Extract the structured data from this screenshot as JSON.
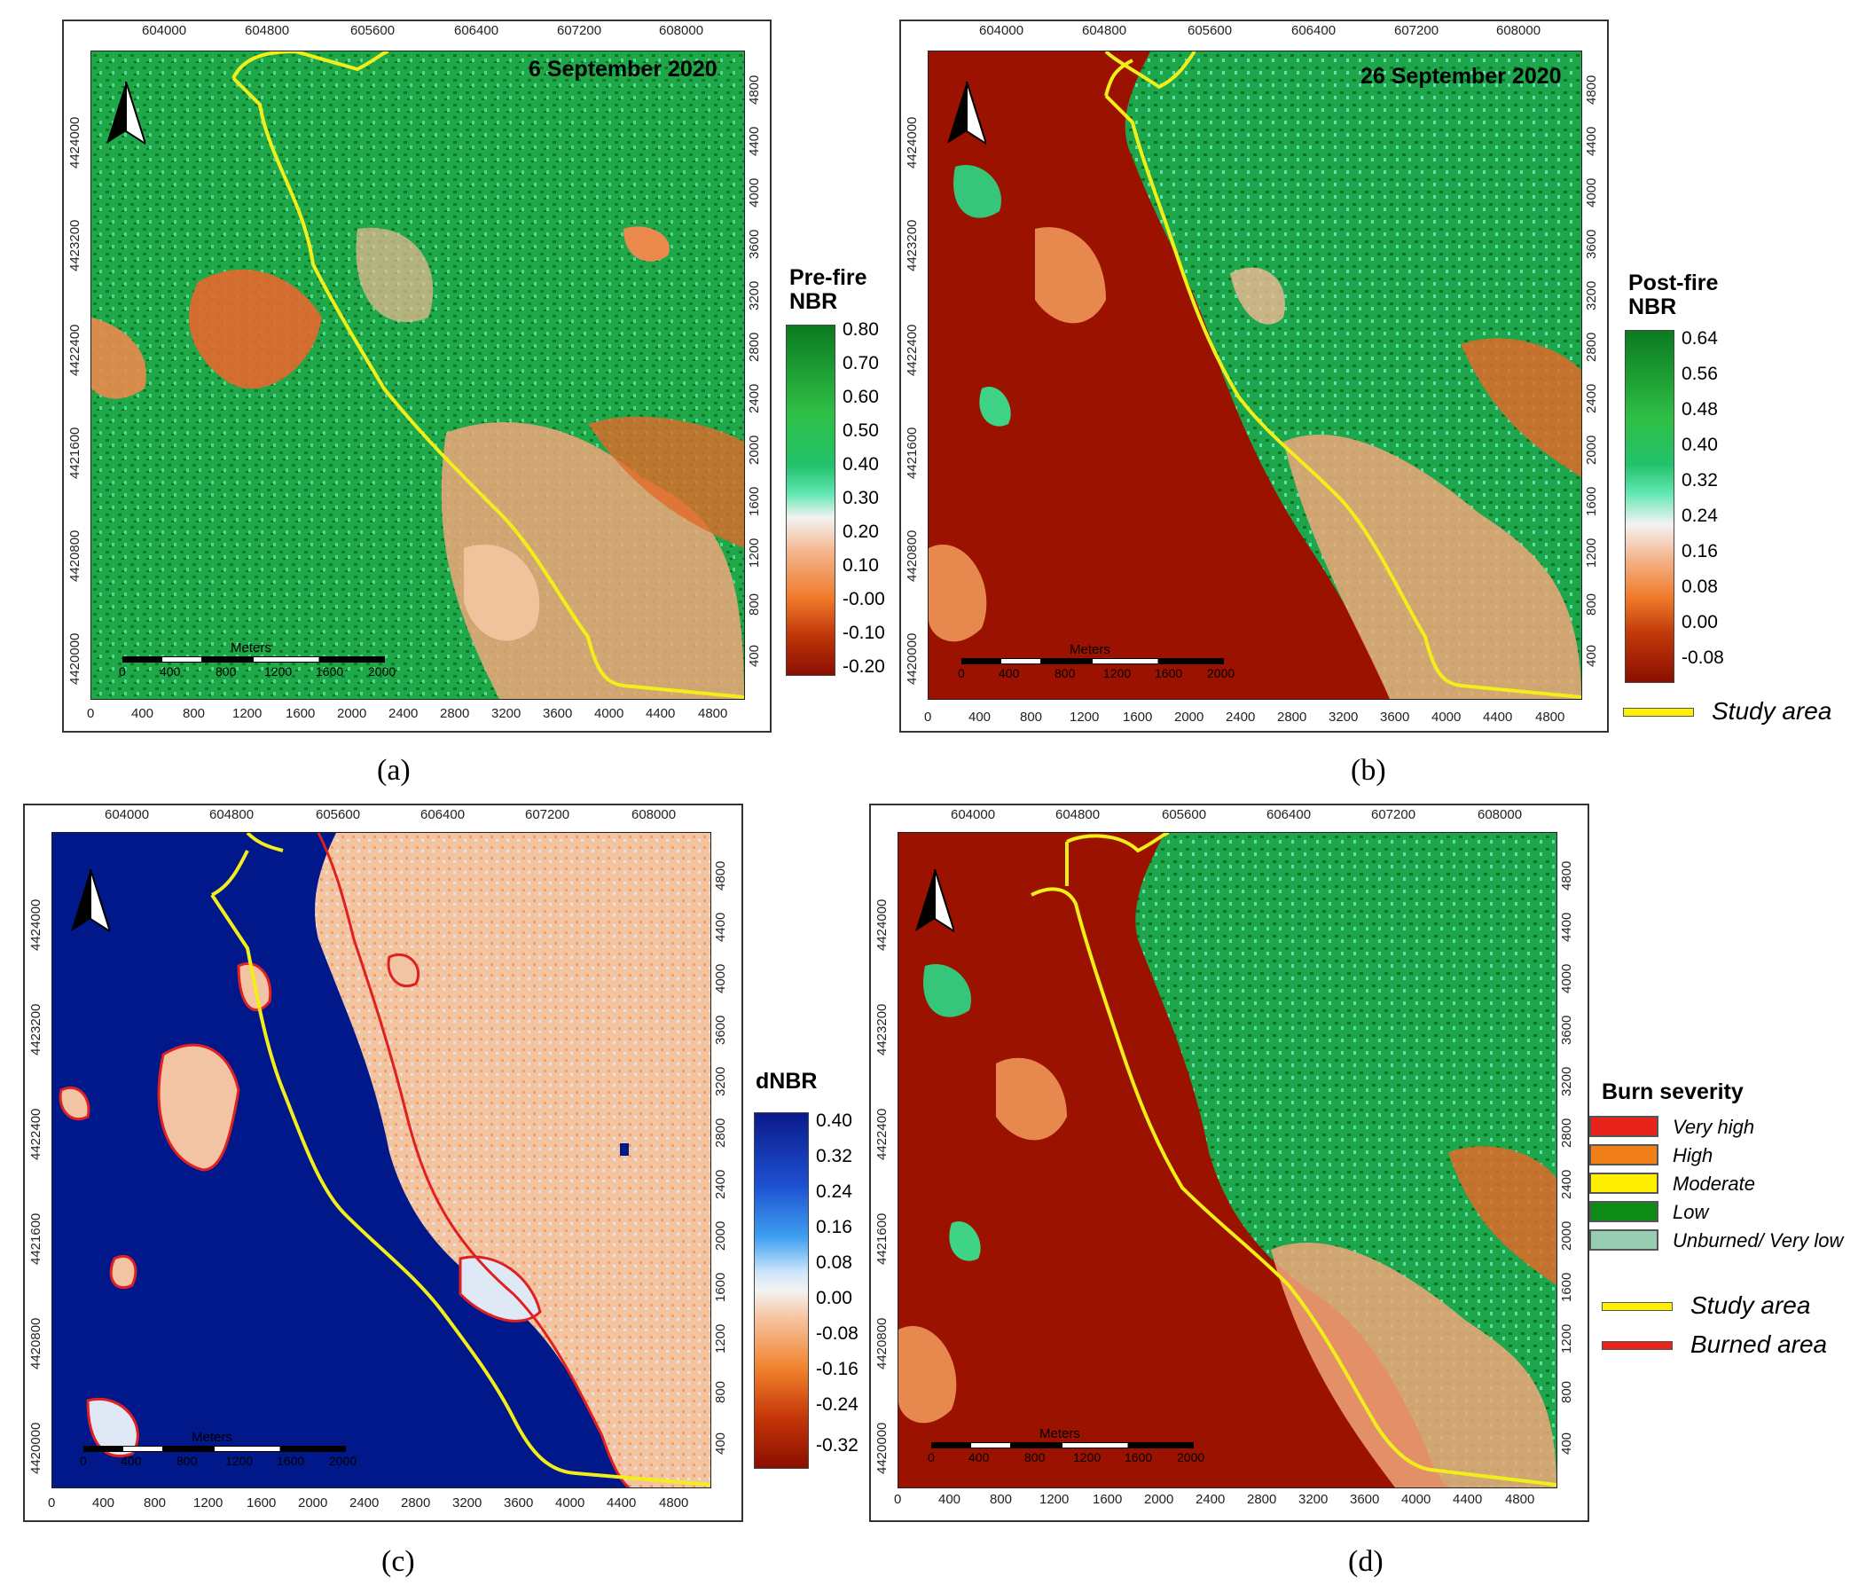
{
  "axes": {
    "top": [
      "604000",
      "604800",
      "605600",
      "606400",
      "607200",
      "608000"
    ],
    "bottom": [
      "0",
      "400",
      "800",
      "1200",
      "1600",
      "2000",
      "2400",
      "2800",
      "3200",
      "3600",
      "4000",
      "4400",
      "4800"
    ],
    "left": [
      "4424000",
      "4423200",
      "4422400",
      "4421600",
      "4420800",
      "4420000"
    ],
    "right": [
      "400",
      "800",
      "1200",
      "1600",
      "2000",
      "2400",
      "2800",
      "3200",
      "3600",
      "4000",
      "4400",
      "4800"
    ]
  },
  "scalebar": {
    "title": "Meters",
    "labels": [
      "0",
      "400",
      "800",
      "1200",
      "1600",
      "2000"
    ]
  },
  "panels": [
    {
      "id": "a",
      "caption": "(a)",
      "date": "6 September 2020",
      "legend_title": "Pre-fire NBR",
      "ramp_labels": [
        "0.80",
        "0.70",
        "0.60",
        "0.50",
        "0.40",
        "0.30",
        "0.20",
        "0.10",
        "-0.00",
        "-0.10",
        "-0.20"
      ]
    },
    {
      "id": "b",
      "caption": "(b)",
      "date": "26 September 2020",
      "legend_title": "Post-fire NBR",
      "ramp_labels": [
        "0.64",
        "0.56",
        "0.48",
        "0.40",
        "0.32",
        "0.24",
        "0.16",
        "0.08",
        "0.00",
        "-0.08"
      ],
      "study_area_label": "Study area"
    },
    {
      "id": "c",
      "caption": "(c)",
      "date": "",
      "legend_title": "dNBR",
      "ramp_labels": [
        "0.40",
        "0.32",
        "0.24",
        "0.16",
        "0.08",
        "0.00",
        "-0.08",
        "-0.16",
        "-0.24",
        "-0.32"
      ]
    },
    {
      "id": "d",
      "caption": "(d)",
      "date": "",
      "legend_title": "Burn severity",
      "severity_classes": [
        {
          "label": "Very high",
          "color": "#e8231c"
        },
        {
          "label": "High",
          "color": "#f07f1a"
        },
        {
          "label": "Moderate",
          "color": "#ffef00"
        },
        {
          "label": "Low",
          "color": "#0e8a17"
        },
        {
          "label": "Unburned/ Very low",
          "color": "#98cdb3"
        }
      ],
      "line_legend": [
        {
          "label": "Study area",
          "color": "#ffef00"
        },
        {
          "label": "Burned area",
          "color": "#e8231c"
        }
      ]
    }
  ],
  "colors": {
    "nbr_high": "#0b7a20",
    "nbr_mid": "#22c26b",
    "nbr_low": "#f08a3c",
    "nbr_burn": "#9b1200",
    "dnbr_high": "#00188a",
    "dnbr_low": "#f5b48a",
    "study_area_line": "#f2ee1a",
    "burned_outline": "#e02020"
  }
}
